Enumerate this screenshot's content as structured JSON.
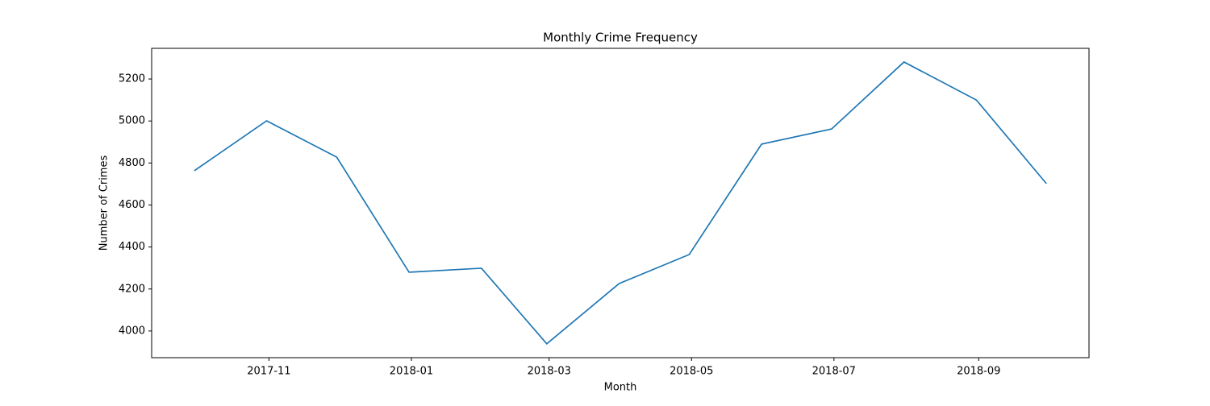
{
  "chart_data": {
    "type": "line",
    "title": "Monthly Crime Frequency",
    "x_label": "Month",
    "y_label": "Number of Crimes",
    "x": [
      "2017-09",
      "2017-10",
      "2017-11",
      "2017-12",
      "2018-01",
      "2018-02",
      "2018-03",
      "2018-04",
      "2018-05",
      "2018-06",
      "2018-07",
      "2018-08",
      "2018-09"
    ],
    "series": [
      {
        "color": "#1f77b4",
        "values": [
          4763,
          5001,
          4828,
          4280,
          4299,
          3939,
          4226,
          4364,
          4890,
          4962,
          5281,
          5100,
          4702
        ]
      }
    ],
    "ylim": [
      3873,
      5346
    ],
    "yticks": [
      4000,
      4200,
      4400,
      4600,
      4800,
      5000,
      5200
    ],
    "xticks": [
      "2017-11",
      "2018-01",
      "2018-03",
      "2018-05",
      "2018-07",
      "2018-09"
    ],
    "grid": false
  }
}
